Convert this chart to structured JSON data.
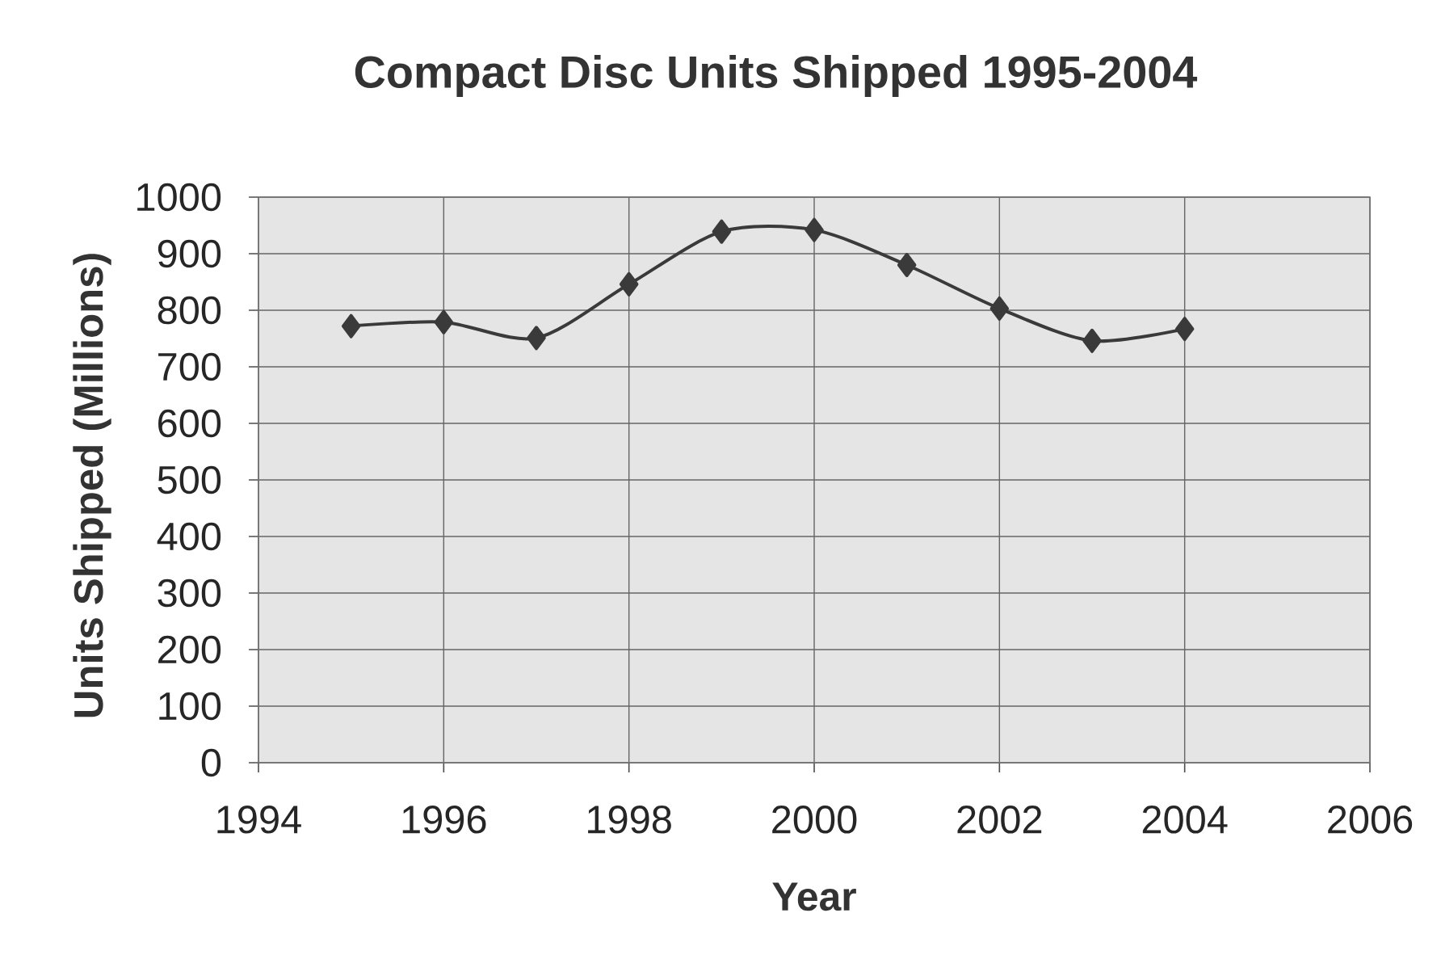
{
  "chart_data": {
    "type": "line",
    "title": "Compact Disc Units Shipped 1995-2004",
    "xlabel": "Year",
    "ylabel": "Units Shipped (Millions)",
    "x": [
      1995,
      1996,
      1997,
      1998,
      1999,
      2000,
      2001,
      2002,
      2003,
      2004
    ],
    "values": [
      772,
      779,
      751,
      846,
      939,
      942,
      880,
      803,
      746,
      767
    ],
    "color": "#3a3a3a",
    "marker": "diamond",
    "line_style": "solid",
    "grid": true,
    "xlim": [
      1994,
      2006
    ],
    "xticks": [
      1994,
      1996,
      1998,
      2000,
      2002,
      2004,
      2006
    ],
    "ylim": [
      0,
      1000
    ],
    "yticks": [
      0,
      100,
      200,
      300,
      400,
      500,
      600,
      700,
      800,
      900,
      1000
    ]
  }
}
